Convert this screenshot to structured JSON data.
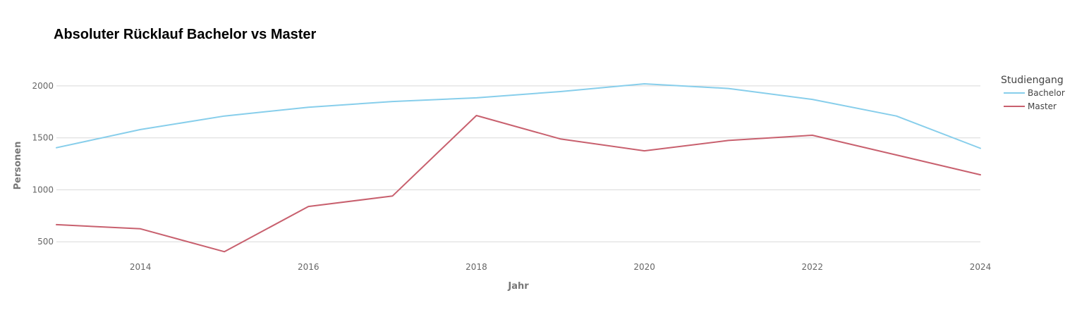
{
  "chart_data": {
    "type": "line",
    "title": "Absoluter Rücklauf Bachelor vs Master",
    "xlabel": "Jahr",
    "ylabel": "Personen",
    "x": [
      2013,
      2014,
      2015,
      2016,
      2017,
      2018,
      2019,
      2020,
      2021,
      2022,
      2023,
      2024
    ],
    "xlim": [
      2013,
      2024
    ],
    "ylim": [
      400,
      2230
    ],
    "x_ticks": [
      "2014",
      "2016",
      "2018",
      "2020",
      "2022",
      "2024"
    ],
    "y_ticks": [
      "500",
      "1000",
      "1500",
      "2000"
    ],
    "grid": "horizontal",
    "legend": {
      "title": "Studiengang",
      "position": "top-right"
    },
    "series": [
      {
        "name": "Bachelor",
        "color": "#87ceeb",
        "values": [
          1405,
          1580,
          1710,
          1795,
          1850,
          1885,
          1945,
          2020,
          1975,
          1870,
          1710,
          1400
        ]
      },
      {
        "name": "Master",
        "color": "#c8606e",
        "values": [
          665,
          625,
          405,
          840,
          940,
          1715,
          1490,
          1375,
          1475,
          1525,
          1335,
          1145
        ]
      }
    ]
  }
}
